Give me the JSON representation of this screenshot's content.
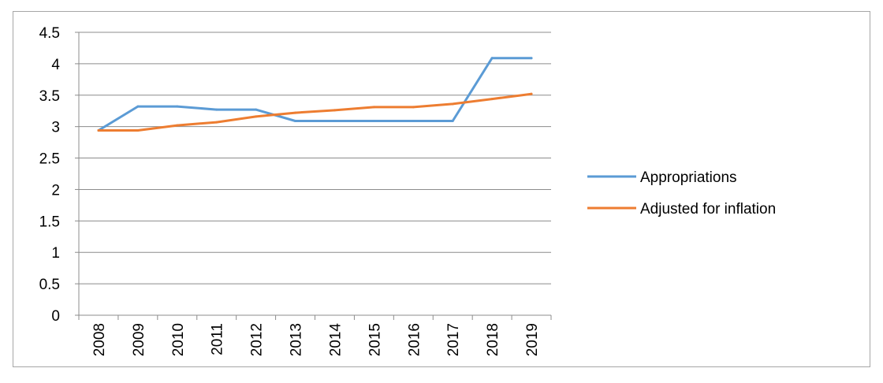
{
  "chart_data": {
    "type": "line",
    "title": "",
    "xlabel": "",
    "ylabel": "",
    "categories": [
      "2008",
      "2009",
      "2010",
      "2011",
      "2012",
      "2013",
      "2014",
      "2015",
      "2016",
      "2017",
      "2018",
      "2019"
    ],
    "ylim": [
      0,
      4.5
    ],
    "yticks": [
      "0",
      "0.5",
      "1",
      "1.5",
      "2",
      "2.5",
      "3",
      "3.5",
      "4",
      "4.5"
    ],
    "grid": true,
    "legend_position": "right",
    "series": [
      {
        "name": "Appropriations",
        "color": "#5b9bd5",
        "values": [
          2.94,
          3.32,
          3.32,
          3.27,
          3.27,
          3.09,
          3.09,
          3.09,
          3.09,
          3.09,
          4.09,
          4.09
        ]
      },
      {
        "name": "Adjusted for inflation",
        "color": "#ed7d31",
        "values": [
          2.94,
          2.94,
          3.02,
          3.07,
          3.16,
          3.22,
          3.26,
          3.31,
          3.31,
          3.36,
          3.44,
          3.52
        ]
      }
    ]
  }
}
